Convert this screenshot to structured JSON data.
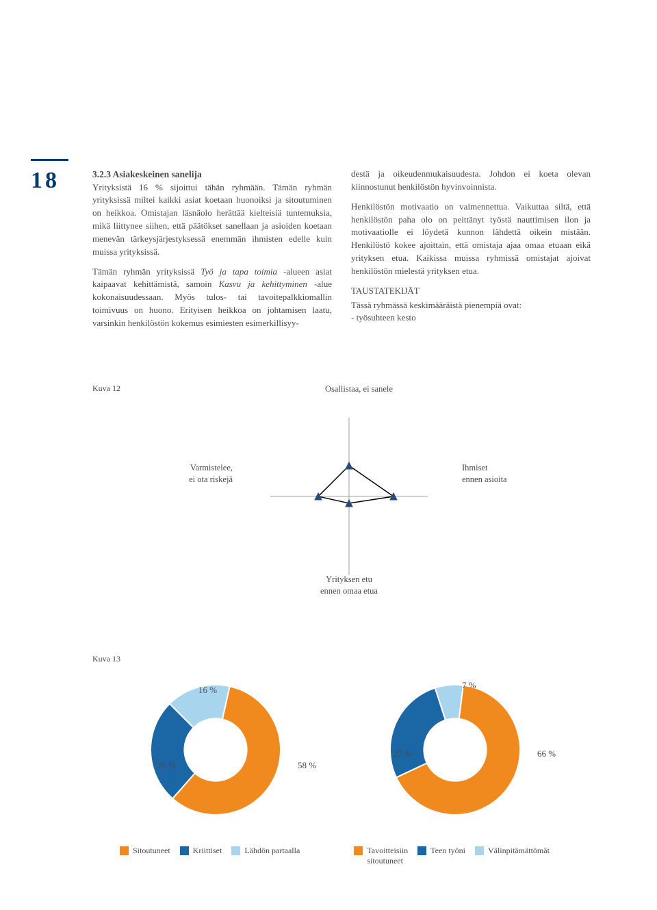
{
  "page_number": "18",
  "section_title": "3.2.3 Asiakeskeinen sanelija",
  "col1_para1": "Yrityksistä 16 % sijoittui tähän ryhmään. Tämän ryhmän yrityksissä miltei kaikki asiat koetaan huonoiksi ja sitoutuminen on heikkoa. Omistajan läsnäolo herättää kielteisiä tuntemuksia, mikä liittynee siihen, että päätökset sanellaan ja asioiden koetaan menevän tärkeysjärjestyksessä enemmän ihmisten edelle kuin muissa yrityksissä.",
  "col1_para2_a": "Tämän ryhmän yrityksissä ",
  "col1_para2_i1": "Työ ja tapa toimia",
  "col1_para2_b": " -alueen asiat kaipaavat kehittämistä, samoin ",
  "col1_para2_i2": "Kasvu ja kehittyminen",
  "col1_para2_c": " -alue kokonaisuudessaan. Myös tulos- tai tavoitepalkkiomallin toimivuus on huono. Erityisen heikkoa on johtamisen laatu, varsinkin henkilöstön kokemus esimiesten esimerkillisyy-",
  "col2_para1": "destä ja oikeudenmukaisuudesta. Johdon ei koeta olevan kiinnostunut henkilöstön hyvinvoinnista.",
  "col2_para2": "Henkilöstön motivaatio on vaimennettua. Vaikuttaa siltä, että henkilöstön paha olo on peittänyt työstä nauttimisen ilon ja motivaatiolle ei löydetä kunnon lähdettä oikein mistään. Henkilöstö kokee ajoittain, että omistaja ajaa omaa etuaan eikä yrityksen etua. Kaikissa muissa ryhmissä omistajat ajoivat henkilöstön mielestä yrityksen etua.",
  "col2_sub": "TAUSTATEKIJÄT",
  "col2_para3": "Tässä ryhmässä keskimääräistä pienempiä ovat:\n- työsuhteen kesto",
  "kuva12": "Kuva 12",
  "kuva13": "Kuva 13",
  "radar": {
    "apex_top": "Osallistaa, ei sanele",
    "apex_left_l1": "Varmistelee,",
    "apex_left_l2": "ei ota riskejä",
    "apex_right_l1": "Ihmiset",
    "apex_right_l2": "ennen asioita",
    "apex_bottom_l1": "Yrityksen etu",
    "apex_bottom_l2": "ennen omaa etua",
    "axis_color": "#888888",
    "shape_color": "#000000",
    "marker_color": "#2a4a7a"
  },
  "donut1": {
    "slices": [
      {
        "label": "58 %",
        "value": 58,
        "color": "#f08a1e"
      },
      {
        "label": "26 %",
        "value": 26,
        "color": "#1b67a6"
      },
      {
        "label": "16 %",
        "value": 16,
        "color": "#a8d4ee"
      }
    ],
    "inner_ratio": 0.48
  },
  "donut2": {
    "slices": [
      {
        "label": "66 %",
        "value": 66,
        "color": "#f08a1e"
      },
      {
        "label": "27 %",
        "value": 27,
        "color": "#1b67a6"
      },
      {
        "label": "7 %",
        "value": 7,
        "color": "#a8d4ee"
      }
    ],
    "inner_ratio": 0.48
  },
  "legend1": [
    {
      "label": "Sitoutuneet",
      "color": "#f08a1e"
    },
    {
      "label": "Kriittiset",
      "color": "#1b67a6"
    },
    {
      "label": "Lähdön partaalla",
      "color": "#a8d4ee"
    }
  ],
  "legend2": [
    {
      "label_l1": "Tavoitteisiin",
      "label_l2": "sitoutuneet",
      "color": "#f08a1e"
    },
    {
      "label_l1": "Teen työni",
      "label_l2": "",
      "color": "#1b67a6"
    },
    {
      "label_l1": "Välinpitämättömät",
      "label_l2": "",
      "color": "#a8d4ee"
    }
  ]
}
